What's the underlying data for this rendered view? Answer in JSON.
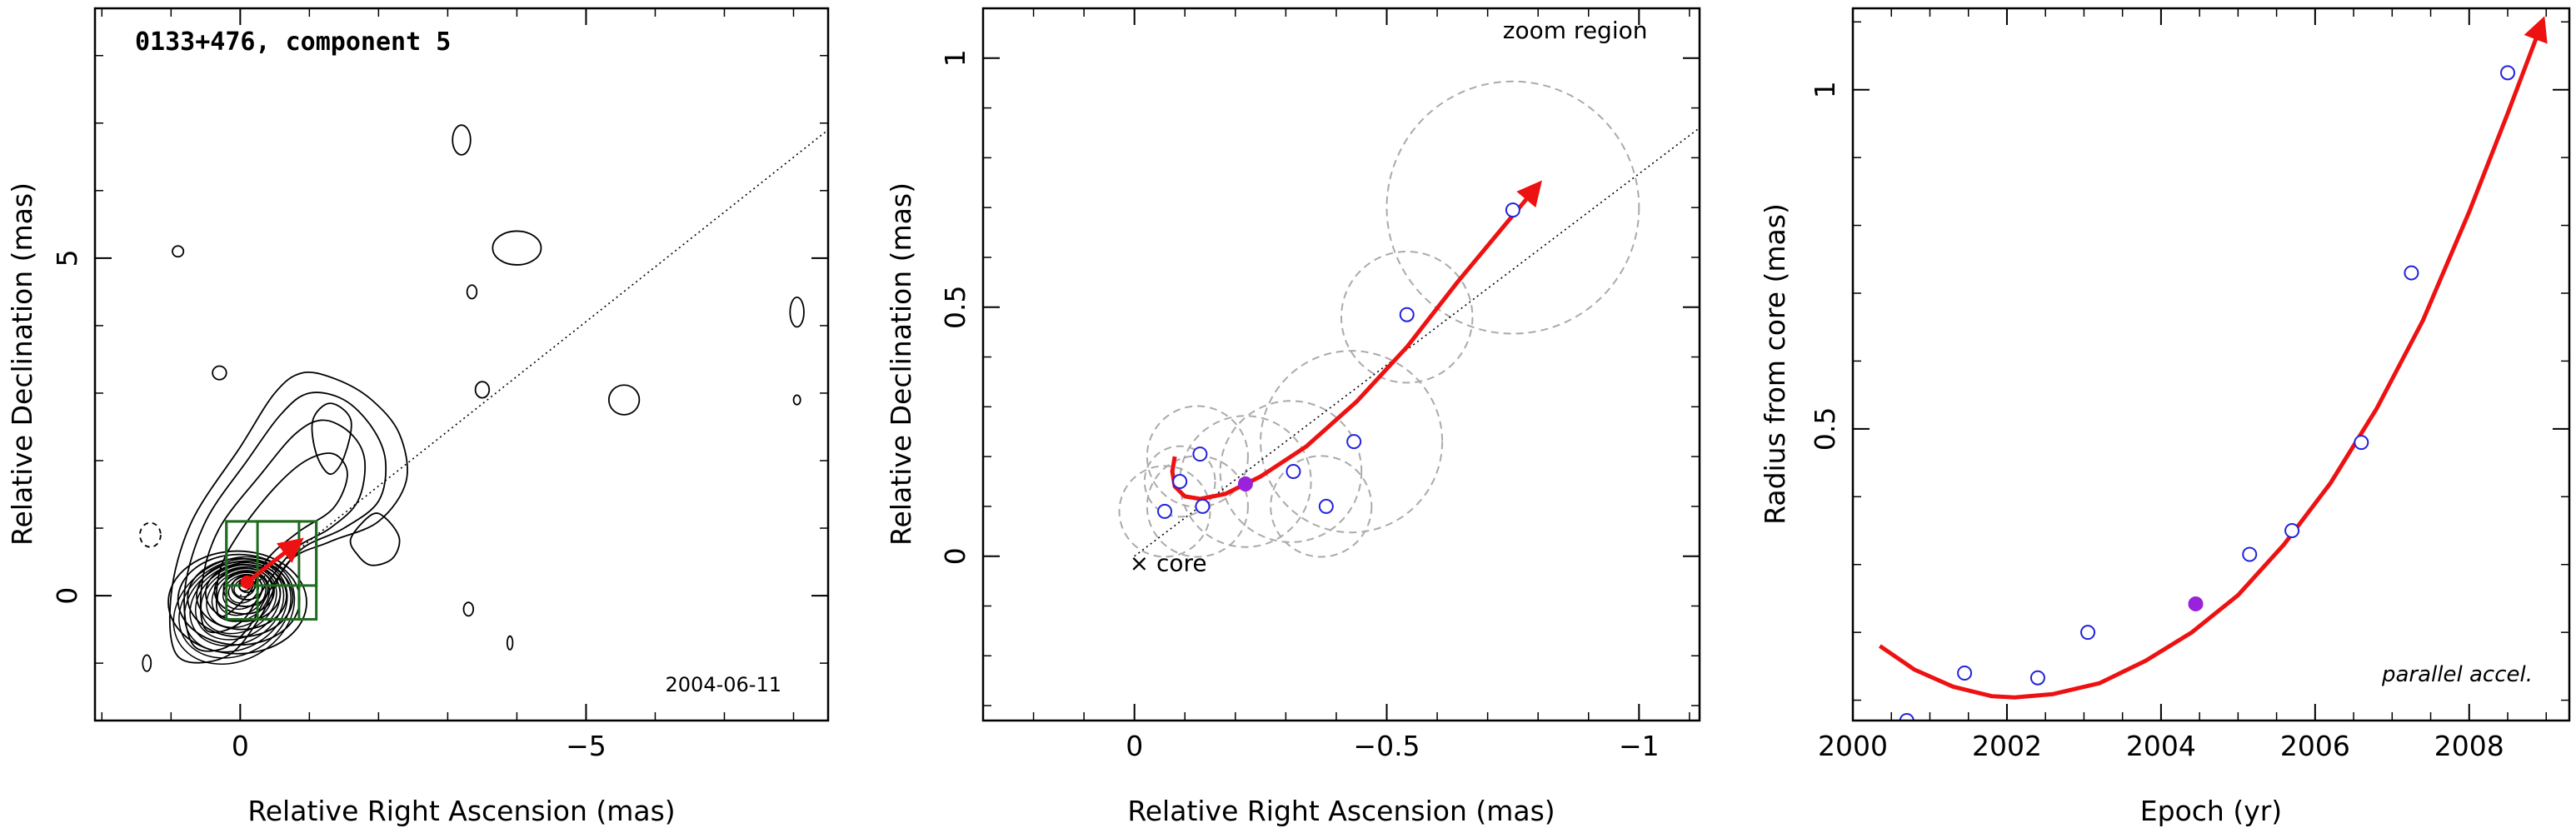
{
  "colors": {
    "axis": "#000000",
    "contour": "#000000",
    "box": "#1f6b1f",
    "arrow": "#ee1111",
    "point": "#2222dd",
    "point_filled": "#9922dd",
    "circle": "#aaaaaa",
    "guide": "#000000"
  },
  "chart_data": [
    {
      "type": "contour",
      "title": "0133+476, component 5",
      "date_label": "2004-06-11",
      "xlabel": "Relative Right Ascension (mas)",
      "ylabel": "Relative Declination (mas)",
      "xlim": [
        2.1,
        -8.5
      ],
      "ylim": [
        -1.85,
        8.7
      ],
      "xticks": [
        0,
        -5
      ],
      "xtick_labels": [
        "0",
        "−5"
      ],
      "yticks": [
        0,
        5
      ],
      "ytick_labels": [
        "0",
        "5"
      ],
      "core": [
        -0.1,
        0.2
      ],
      "arrow": {
        "from": [
          -0.1,
          0.2
        ],
        "to": [
          -0.85,
          0.8
        ]
      },
      "guide_line": [
        [
          0.0,
          0.0
        ],
        [
          -8.5,
          6.9
        ]
      ],
      "boxes": [
        {
          "x": [
            0.2,
            -0.85
          ],
          "y": [
            -0.35,
            1.1
          ]
        },
        {
          "x": [
            -0.25,
            -1.1
          ],
          "y": [
            -0.35,
            1.1
          ]
        },
        {
          "x": [
            0.2,
            -1.1
          ],
          "y": [
            0.15,
            1.1
          ]
        }
      ],
      "nested_levels": 14,
      "core_contours": [
        {
          "cx": -0.1,
          "cy": 0.15,
          "rx": 0.12,
          "ry": 0.1
        },
        {
          "cx": -0.1,
          "cy": 0.12,
          "rx": 0.22,
          "ry": 0.18
        },
        {
          "cx": -0.08,
          "cy": 0.1,
          "rx": 0.32,
          "ry": 0.26
        },
        {
          "cx": -0.06,
          "cy": 0.07,
          "rx": 0.43,
          "ry": 0.34
        },
        {
          "cx": -0.04,
          "cy": 0.04,
          "rx": 0.54,
          "ry": 0.42
        },
        {
          "cx": -0.02,
          "cy": 0.0,
          "rx": 0.65,
          "ry": 0.5
        },
        {
          "cx": 0.0,
          "cy": -0.03,
          "rx": 0.76,
          "ry": 0.58
        },
        {
          "cx": 0.02,
          "cy": -0.06,
          "rx": 0.88,
          "ry": 0.67
        },
        {
          "cx": 0.04,
          "cy": -0.1,
          "rx": 1.0,
          "ry": 0.76
        }
      ],
      "outer_contours": [
        [
          [
            0.9,
            -0.9
          ],
          [
            1.0,
            0.0
          ],
          [
            0.7,
            1.1
          ],
          [
            0.0,
            2.2
          ],
          [
            -0.5,
            3.0
          ],
          [
            -0.9,
            3.3
          ],
          [
            -1.4,
            3.2
          ],
          [
            -1.9,
            2.9
          ],
          [
            -2.3,
            2.4
          ],
          [
            -2.4,
            1.7
          ],
          [
            -2.0,
            1.1
          ],
          [
            -1.3,
            0.8
          ],
          [
            -0.7,
            0.5
          ],
          [
            -0.3,
            -0.3
          ],
          [
            0.2,
            -0.9
          ]
        ],
        [
          [
            0.7,
            -0.7
          ],
          [
            0.8,
            0.1
          ],
          [
            0.5,
            1.1
          ],
          [
            -0.1,
            2.0
          ],
          [
            -0.6,
            2.7
          ],
          [
            -1.0,
            3.0
          ],
          [
            -1.5,
            2.9
          ],
          [
            -1.9,
            2.5
          ],
          [
            -2.1,
            2.0
          ],
          [
            -2.0,
            1.4
          ],
          [
            -1.5,
            1.0
          ],
          [
            -0.9,
            0.7
          ],
          [
            -0.5,
            0.2
          ],
          [
            -0.1,
            -0.5
          ],
          [
            0.3,
            -0.8
          ]
        ],
        [
          [
            0.5,
            -0.5
          ],
          [
            0.55,
            0.2
          ],
          [
            0.3,
            1.0
          ],
          [
            -0.3,
            1.8
          ],
          [
            -0.8,
            2.4
          ],
          [
            -1.2,
            2.6
          ],
          [
            -1.6,
            2.4
          ],
          [
            -1.8,
            2.0
          ],
          [
            -1.7,
            1.4
          ],
          [
            -1.3,
            1.0
          ],
          [
            -0.8,
            0.7
          ],
          [
            -0.4,
            0.2
          ],
          [
            0.0,
            -0.4
          ]
        ],
        [
          [
            0.3,
            -0.3
          ],
          [
            0.3,
            0.35
          ],
          [
            0.0,
            0.95
          ],
          [
            -0.5,
            1.6
          ],
          [
            -0.95,
            2.0
          ],
          [
            -1.35,
            2.1
          ],
          [
            -1.55,
            1.8
          ],
          [
            -1.35,
            1.3
          ],
          [
            -0.85,
            0.95
          ],
          [
            -0.4,
            0.55
          ],
          [
            -0.1,
            0.0
          ]
        ],
        [
          [
            -1.3,
            1.8
          ],
          [
            -1.5,
            2.05
          ],
          [
            -1.6,
            2.6
          ],
          [
            -1.3,
            2.85
          ],
          [
            -1.05,
            2.6
          ],
          [
            -1.1,
            2.1
          ]
        ],
        [
          [
            -1.6,
            0.85
          ],
          [
            -1.9,
            1.2
          ],
          [
            -2.1,
            1.15
          ],
          [
            -2.3,
            0.85
          ],
          [
            -2.2,
            0.55
          ],
          [
            -1.9,
            0.45
          ],
          [
            -1.7,
            0.6
          ]
        ]
      ],
      "islands": [
        {
          "cx": -3.2,
          "cy": 6.75,
          "rx": 0.13,
          "ry": 0.22
        },
        {
          "cx": -4.0,
          "cy": 5.15,
          "rx": 0.35,
          "ry": 0.25
        },
        {
          "cx": -3.35,
          "cy": 4.5,
          "rx": 0.07,
          "ry": 0.1
        },
        {
          "cx": -3.5,
          "cy": 3.05,
          "rx": 0.1,
          "ry": 0.12
        },
        {
          "cx": -5.55,
          "cy": 2.9,
          "rx": 0.22,
          "ry": 0.22
        },
        {
          "cx": -8.05,
          "cy": 4.2,
          "rx": 0.1,
          "ry": 0.22
        },
        {
          "cx": -8.05,
          "cy": 2.9,
          "rx": 0.05,
          "ry": 0.07
        },
        {
          "cx": 0.9,
          "cy": 5.1,
          "rx": 0.08,
          "ry": 0.08
        },
        {
          "cx": 0.3,
          "cy": 3.3,
          "rx": 0.1,
          "ry": 0.1
        },
        {
          "cx": 1.35,
          "cy": -1.0,
          "rx": 0.06,
          "ry": 0.12
        },
        {
          "cx": 1.3,
          "cy": 0.9,
          "rx": 0.15,
          "ry": 0.18,
          "dashed": true
        },
        {
          "cx": -3.3,
          "cy": -0.2,
          "rx": 0.07,
          "ry": 0.1
        },
        {
          "cx": -3.9,
          "cy": -0.7,
          "rx": 0.04,
          "ry": 0.1
        }
      ]
    },
    {
      "type": "scatter",
      "xlabel": "Relative Right Ascension (mas)",
      "ylabel": "Relative Declination (mas)",
      "xlim": [
        0.3,
        -1.12
      ],
      "ylim": [
        -0.33,
        1.1
      ],
      "xticks": [
        0,
        -0.5,
        -1
      ],
      "xtick_labels": [
        "0",
        "−0.5",
        "−1"
      ],
      "yticks": [
        0,
        0.5,
        1
      ],
      "ytick_labels": [
        "0",
        "0.5",
        "1"
      ],
      "annotations": [
        {
          "text": "zoom region",
          "x": -0.73,
          "y": 1.04
        },
        {
          "text": "× core",
          "x": 0.01,
          "y": -0.03
        }
      ],
      "guide_line": [
        [
          0.0,
          0.0
        ],
        [
          -1.12,
          0.86
        ]
      ],
      "circles": [
        {
          "x": -0.75,
          "y": 0.7,
          "r": 0.25
        },
        {
          "x": -0.54,
          "y": 0.48,
          "r": 0.13
        },
        {
          "x": -0.43,
          "y": 0.23,
          "r": 0.18
        },
        {
          "x": -0.31,
          "y": 0.17,
          "r": 0.14
        },
        {
          "x": -0.37,
          "y": 0.1,
          "r": 0.1
        },
        {
          "x": -0.22,
          "y": 0.15,
          "r": 0.13
        },
        {
          "x": -0.125,
          "y": 0.2,
          "r": 0.1
        },
        {
          "x": -0.125,
          "y": 0.1,
          "r": 0.1
        },
        {
          "x": -0.09,
          "y": 0.15,
          "r": 0.07
        },
        {
          "x": -0.06,
          "y": 0.09,
          "r": 0.09
        }
      ],
      "points": [
        {
          "x": -0.75,
          "y": 0.695
        },
        {
          "x": -0.54,
          "y": 0.485
        },
        {
          "x": -0.435,
          "y": 0.23
        },
        {
          "x": -0.315,
          "y": 0.17
        },
        {
          "x": -0.38,
          "y": 0.1
        },
        {
          "x": -0.13,
          "y": 0.205
        },
        {
          "x": -0.09,
          "y": 0.15
        },
        {
          "x": -0.135,
          "y": 0.1
        },
        {
          "x": -0.06,
          "y": 0.09
        },
        {
          "x": -0.22,
          "y": 0.145,
          "filled": true
        }
      ],
      "fit_curve": [
        [
          -0.08,
          0.2
        ],
        [
          -0.075,
          0.17
        ],
        [
          -0.08,
          0.14
        ],
        [
          -0.1,
          0.12
        ],
        [
          -0.13,
          0.115
        ],
        [
          -0.18,
          0.125
        ],
        [
          -0.25,
          0.16
        ],
        [
          -0.34,
          0.22
        ],
        [
          -0.44,
          0.31
        ],
        [
          -0.54,
          0.42
        ],
        [
          -0.64,
          0.55
        ],
        [
          -0.73,
          0.66
        ],
        [
          -0.8,
          0.745
        ]
      ]
    },
    {
      "type": "scatter",
      "xlabel": "Epoch (yr)",
      "ylabel": "Radius from core (mas)",
      "annotation": "parallel accel.",
      "xlim": [
        2000.0,
        2009.3
      ],
      "ylim": [
        0.07,
        1.12
      ],
      "xticks": [
        2000,
        2002,
        2004,
        2006,
        2008
      ],
      "xtick_labels": [
        "2000",
        "2002",
        "2004",
        "2006",
        "2008"
      ],
      "yticks": [
        0.5,
        1
      ],
      "ytick_labels": [
        "0.5",
        "1"
      ],
      "points": [
        {
          "x": 2000.7,
          "y": 0.07
        },
        {
          "x": 2001.45,
          "y": 0.14
        },
        {
          "x": 2002.4,
          "y": 0.133
        },
        {
          "x": 2003.05,
          "y": 0.2
        },
        {
          "x": 2005.15,
          "y": 0.315
        },
        {
          "x": 2005.7,
          "y": 0.35
        },
        {
          "x": 2006.6,
          "y": 0.48
        },
        {
          "x": 2007.25,
          "y": 0.73
        },
        {
          "x": 2008.5,
          "y": 1.025
        },
        {
          "x": 2004.45,
          "y": 0.242,
          "filled": true
        }
      ],
      "fit_curve": [
        [
          2000.35,
          0.18
        ],
        [
          2000.8,
          0.145
        ],
        [
          2001.3,
          0.12
        ],
        [
          2001.8,
          0.106
        ],
        [
          2002.1,
          0.104
        ],
        [
          2002.6,
          0.109
        ],
        [
          2003.2,
          0.125
        ],
        [
          2003.8,
          0.158
        ],
        [
          2004.4,
          0.2
        ],
        [
          2005.0,
          0.255
        ],
        [
          2005.6,
          0.33
        ],
        [
          2006.2,
          0.42
        ],
        [
          2006.8,
          0.53
        ],
        [
          2007.4,
          0.66
        ],
        [
          2008.0,
          0.82
        ],
        [
          2008.5,
          0.965
        ],
        [
          2008.95,
          1.1
        ]
      ]
    }
  ]
}
